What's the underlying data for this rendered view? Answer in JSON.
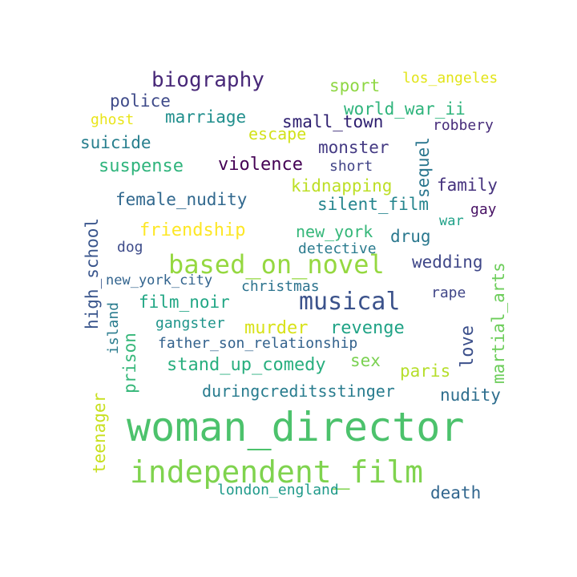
{
  "words": [
    {
      "text": "woman_director",
      "color": "#4cc26c"
    },
    {
      "text": "independent_film",
      "color": "#7fd34e"
    },
    {
      "text": "based_on_novel",
      "color": "#95d840"
    },
    {
      "text": "musical",
      "color": "#3b528b"
    },
    {
      "text": "biography",
      "color": "#482878"
    },
    {
      "text": "violence",
      "color": "#440154"
    },
    {
      "text": "suspense",
      "color": "#2fb47c"
    },
    {
      "text": "friendship",
      "color": "#fde725"
    },
    {
      "text": "murder",
      "color": "#d8e219"
    },
    {
      "text": "revenge",
      "color": "#20a386"
    },
    {
      "text": "stand_up_comedy",
      "color": "#29af7f"
    },
    {
      "text": "female_nudity",
      "color": "#31688e"
    },
    {
      "text": "small_town",
      "color": "#2d1e6f"
    },
    {
      "text": "monster",
      "color": "#443a83"
    },
    {
      "text": "marriage",
      "color": "#218f8d"
    },
    {
      "text": "police",
      "color": "#3e4a89"
    },
    {
      "text": "suicide",
      "color": "#277f8e"
    },
    {
      "text": "kidnapping",
      "color": "#bddf26"
    },
    {
      "text": "silent_film",
      "color": "#25858e"
    },
    {
      "text": "new_york",
      "color": "#35b779"
    },
    {
      "text": "wedding",
      "color": "#3f4788"
    },
    {
      "text": "family",
      "color": "#46337e"
    },
    {
      "text": "world_war_ii",
      "color": "#2fb47c"
    },
    {
      "text": "sport",
      "color": "#8fd744"
    },
    {
      "text": "los_angeles",
      "color": "#e2e418"
    },
    {
      "text": "escape",
      "color": "#d2e21b"
    },
    {
      "text": "ghost",
      "color": "#e9e51a"
    },
    {
      "text": "robbery",
      "color": "#472c7a"
    },
    {
      "text": "short",
      "color": "#414487"
    },
    {
      "text": "gay",
      "color": "#471164"
    },
    {
      "text": "war",
      "color": "#1fa188"
    },
    {
      "text": "drug",
      "color": "#2a788e"
    },
    {
      "text": "detective",
      "color": "#2a7b8e"
    },
    {
      "text": "dog",
      "color": "#3e4c8a"
    },
    {
      "text": "new_york_city",
      "color": "#32648e"
    },
    {
      "text": "christmas",
      "color": "#2c738e"
    },
    {
      "text": "film_noir",
      "color": "#22a785"
    },
    {
      "text": "gangster",
      "color": "#1f958b"
    },
    {
      "text": "father_son_relationship",
      "color": "#33628d"
    },
    {
      "text": "sex",
      "color": "#7ad151"
    },
    {
      "text": "paris",
      "color": "#b5de2b"
    },
    {
      "text": "duringcreditsstinger",
      "color": "#287c8e"
    },
    {
      "text": "nudity",
      "color": "#2e6e8e"
    },
    {
      "text": "rape",
      "color": "#404688"
    },
    {
      "text": "london_england",
      "color": "#1f9a8a"
    },
    {
      "text": "death",
      "color": "#31668e"
    },
    {
      "text": "sequel",
      "color": "#2a768e"
    },
    {
      "text": "high_school",
      "color": "#39558c"
    },
    {
      "text": "island",
      "color": "#2a7c8e"
    },
    {
      "text": "prison",
      "color": "#35b779"
    },
    {
      "text": "love",
      "color": "#3c508b"
    },
    {
      "text": "martial_arts",
      "color": "#6ccd5a"
    },
    {
      "text": "teenager",
      "color": "#c8e020"
    }
  ]
}
